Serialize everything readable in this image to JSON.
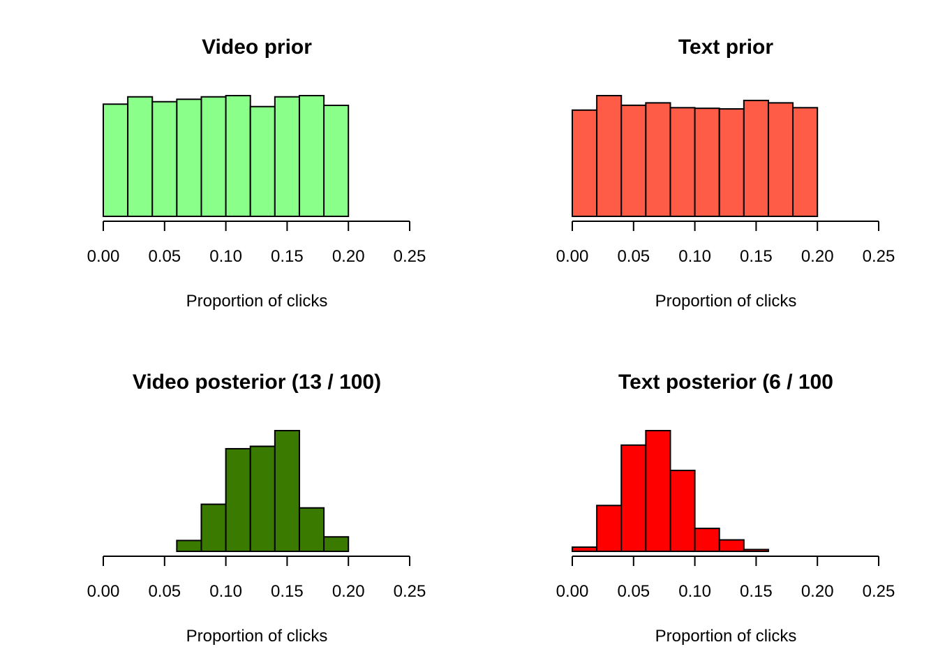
{
  "chart_data": [
    {
      "type": "bar",
      "title": "Video prior",
      "xlabel": "Proportion of clicks",
      "ylabel": "",
      "color": "#8aff8a",
      "xlim": [
        0,
        0.25
      ],
      "bin_edges": [
        0.0,
        0.02,
        0.04,
        0.06,
        0.08,
        0.1,
        0.12,
        0.14,
        0.16,
        0.18,
        0.2
      ],
      "values": [
        92,
        98,
        94,
        96,
        98,
        99,
        90,
        98,
        99,
        91
      ],
      "ticks": [
        "0.00",
        "0.05",
        "0.10",
        "0.15",
        "0.20",
        "0.25"
      ],
      "grid": false
    },
    {
      "type": "bar",
      "title": "Text prior",
      "xlabel": "Proportion of clicks",
      "ylabel": "",
      "color": "#ff5c47",
      "xlim": [
        0,
        0.25
      ],
      "bin_edges": [
        0.0,
        0.02,
        0.04,
        0.06,
        0.08,
        0.1,
        0.12,
        0.14,
        0.16,
        0.18,
        0.2
      ],
      "values": [
        88,
        100,
        92,
        94,
        90,
        89.5,
        89,
        96,
        94,
        90
      ],
      "ticks": [
        "0.00",
        "0.05",
        "0.10",
        "0.15",
        "0.20",
        "0.25"
      ],
      "grid": false
    },
    {
      "type": "bar",
      "title": "Video posterior (13 / 100)",
      "xlabel": "Proportion of clicks",
      "ylabel": "",
      "color": "#3a7a00",
      "xlim": [
        0,
        0.25
      ],
      "bin_edges": [
        0.06,
        0.08,
        0.1,
        0.12,
        0.14,
        0.16,
        0.18,
        0.2
      ],
      "values": [
        9,
        39,
        85,
        87,
        100,
        36,
        12
      ],
      "ticks": [
        "0.00",
        "0.05",
        "0.10",
        "0.15",
        "0.20",
        "0.25"
      ],
      "grid": false
    },
    {
      "type": "bar",
      "title": "Text posterior (6 / 100",
      "xlabel": "Proportion of clicks",
      "ylabel": "",
      "color": "#ff0000",
      "xlim": [
        0,
        0.25
      ],
      "bin_edges": [
        0.0,
        0.02,
        0.04,
        0.06,
        0.08,
        0.1,
        0.12,
        0.14,
        0.16
      ],
      "values": [
        3.5,
        38,
        88,
        100,
        67,
        19,
        9.5,
        1.5
      ],
      "ticks": [
        "0.00",
        "0.05",
        "0.10",
        "0.15",
        "0.20",
        "0.25"
      ],
      "grid": false
    }
  ]
}
